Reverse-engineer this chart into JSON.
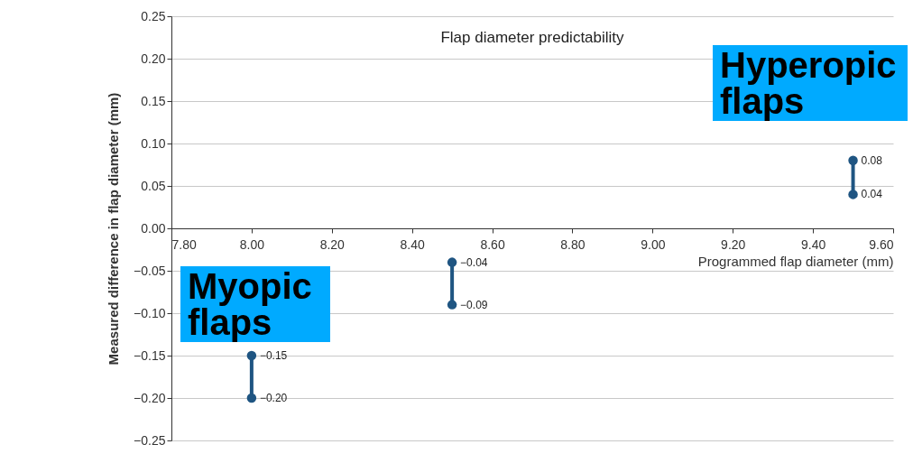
{
  "chart_data": {
    "type": "line",
    "title": "Flap diameter predictability",
    "xlabel": "Programmed flap diameter (mm)",
    "ylabel": "Measured difference in flap diameter (mm)",
    "xlim": [
      7.8,
      9.6
    ],
    "xticks": [
      {
        "value": 7.8,
        "label": "7.80"
      },
      {
        "value": 8,
        "label": "8.00"
      },
      {
        "value": 8.2,
        "label": "8.20"
      },
      {
        "value": 8.4,
        "label": "8.40"
      },
      {
        "value": 8.6,
        "label": "8.60"
      },
      {
        "value": 8.8,
        "label": "8.80"
      },
      {
        "value": 9,
        "label": "9.00"
      },
      {
        "value": 9.2,
        "label": "9.20"
      },
      {
        "value": 9.4,
        "label": "9.40"
      },
      {
        "value": 9.6,
        "label": "9.60"
      }
    ],
    "ylim": [
      -0.25,
      0.25
    ],
    "yticks": [
      {
        "value": -0.25,
        "label": "−0.25"
      },
      {
        "value": -0.2,
        "label": "−0.20"
      },
      {
        "value": -0.15,
        "label": "−0.15"
      },
      {
        "value": -0.1,
        "label": "−0.10"
      },
      {
        "value": -0.05,
        "label": "−0.05"
      },
      {
        "value": 0,
        "label": "0.00"
      },
      {
        "value": 0.05,
        "label": "0.05"
      },
      {
        "value": 0.1,
        "label": "0.10"
      },
      {
        "value": 0.15,
        "label": "0.15"
      },
      {
        "value": 0.2,
        "label": "0.20"
      },
      {
        "value": 0.25,
        "label": "0.25"
      }
    ],
    "series": [
      {
        "color": "#1f5582",
        "x": [
          8,
          8
        ],
        "values": [
          -0.2,
          -0.15
        ],
        "value_labels": [
          "−0.20",
          "−0.15"
        ]
      },
      {
        "color": "#1f5582",
        "x": [
          8.5,
          8.5
        ],
        "values": [
          -0.09,
          -0.04
        ],
        "value_labels": [
          "−0.09",
          "−0.04"
        ]
      },
      {
        "color": "#1f5582",
        "x": [
          9.5,
          9.5
        ],
        "values": [
          0.04,
          0.08
        ],
        "value_labels": [
          "0.04",
          "0.08"
        ]
      }
    ],
    "marker": "circle",
    "line_style": "solid",
    "grid": true,
    "annotations": [
      "Hyperopic flaps",
      "Myopic flaps"
    ]
  }
}
